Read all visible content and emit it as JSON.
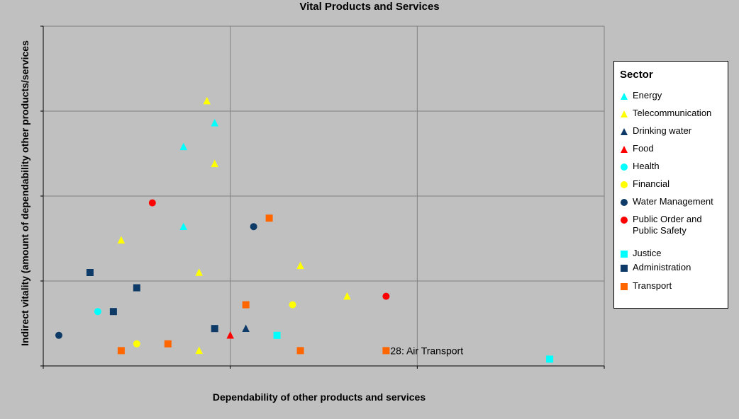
{
  "chart_data": {
    "type": "scatter",
    "title": "Vital Products and Services",
    "xlabel": "Dependability of other products and services",
    "ylabel": "Indirect vitality (amount of dependability other products/services",
    "xlim": [
      0,
      36
    ],
    "ylim": [
      0,
      20
    ],
    "grid": true,
    "legend_title": "Sector",
    "legend_position": "right",
    "series": [
      {
        "name": "Energy",
        "marker": "triangle",
        "color": "#00ffff",
        "points": [
          {
            "x": 9,
            "y": 12.9
          },
          {
            "x": 11,
            "y": 14.3
          },
          {
            "x": 9,
            "y": 8.2
          }
        ]
      },
      {
        "name": "Telecommunication",
        "marker": "triangle",
        "color": "#ffff00",
        "points": [
          {
            "x": 10.5,
            "y": 15.6
          },
          {
            "x": 11,
            "y": 11.9
          },
          {
            "x": 5,
            "y": 7.4
          },
          {
            "x": 10,
            "y": 5.5
          },
          {
            "x": 16.5,
            "y": 5.9
          },
          {
            "x": 19.5,
            "y": 4.1
          },
          {
            "x": 10,
            "y": 0.9
          }
        ]
      },
      {
        "name": "Drinking water",
        "marker": "triangle",
        "color": "#0d3a66",
        "points": [
          {
            "x": 13,
            "y": 2.2
          }
        ]
      },
      {
        "name": "Food",
        "marker": "triangle",
        "color": "#ff0000",
        "points": [
          {
            "x": 12,
            "y": 1.8
          }
        ]
      },
      {
        "name": "Health",
        "marker": "circle",
        "color": "#00ffff",
        "points": [
          {
            "x": 3.5,
            "y": 3.2
          }
        ]
      },
      {
        "name": "Financial",
        "marker": "circle",
        "color": "#ffff00",
        "points": [
          {
            "x": 16,
            "y": 3.6
          },
          {
            "x": 6,
            "y": 1.3
          }
        ]
      },
      {
        "name": "Water Management",
        "marker": "circle",
        "color": "#0d3a66",
        "points": [
          {
            "x": 13.5,
            "y": 8.2
          },
          {
            "x": 1,
            "y": 1.8
          }
        ]
      },
      {
        "name": "Public Order and Public Safety",
        "marker": "circle",
        "color": "#ff0000",
        "points": [
          {
            "x": 7,
            "y": 9.6
          },
          {
            "x": 22,
            "y": 4.1
          }
        ]
      },
      {
        "name": "Justice",
        "marker": "square",
        "color": "#00ffff",
        "points": [
          {
            "x": 15,
            "y": 1.8
          },
          {
            "x": 32.5,
            "y": 0.4
          }
        ]
      },
      {
        "name": "Administration",
        "marker": "square",
        "color": "#0d3a66",
        "points": [
          {
            "x": 3,
            "y": 5.5
          },
          {
            "x": 6,
            "y": 4.6
          },
          {
            "x": 4.5,
            "y": 3.2
          },
          {
            "x": 11,
            "y": 2.2
          }
        ]
      },
      {
        "name": "Transport",
        "marker": "square",
        "color": "#ff6600",
        "points": [
          {
            "x": 14.5,
            "y": 8.7
          },
          {
            "x": 13,
            "y": 3.6
          },
          {
            "x": 8,
            "y": 1.3
          },
          {
            "x": 5,
            "y": 0.9
          },
          {
            "x": 16.5,
            "y": 0.9
          },
          {
            "x": 22,
            "y": 0.9,
            "label": "28: Air Transport"
          }
        ]
      }
    ]
  }
}
